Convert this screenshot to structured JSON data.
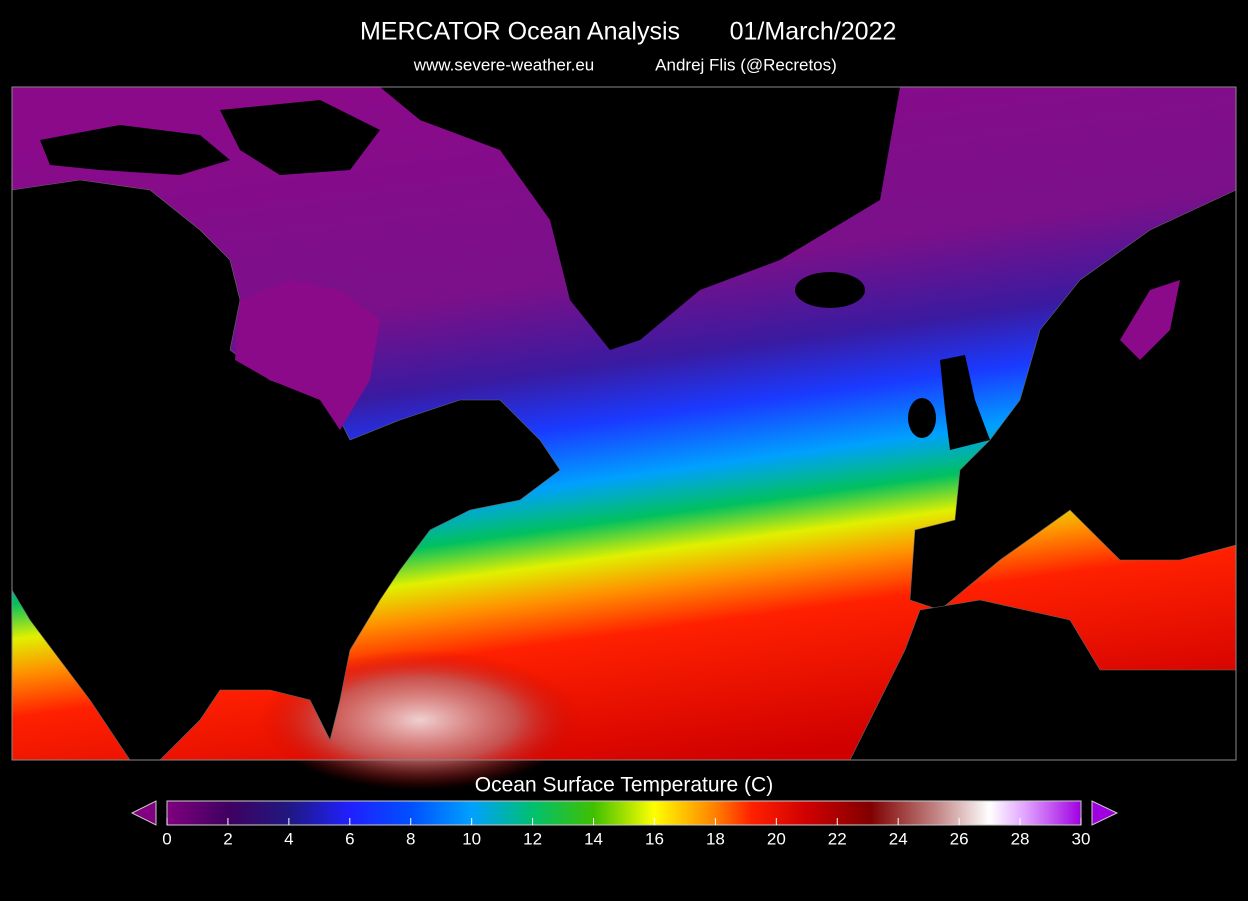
{
  "header": {
    "title": "MERCATOR Ocean Analysis",
    "date": "01/March/2022",
    "website": "www.severe-weather.eu",
    "author": "Andrej Flis (@Recretos)"
  },
  "colorbar": {
    "label": "Ocean Surface Temperature (C)",
    "range": [
      0,
      30
    ],
    "ticks": [
      0,
      2,
      4,
      6,
      8,
      10,
      12,
      14,
      16,
      18,
      20,
      22,
      24,
      26,
      28,
      30
    ]
  }
}
